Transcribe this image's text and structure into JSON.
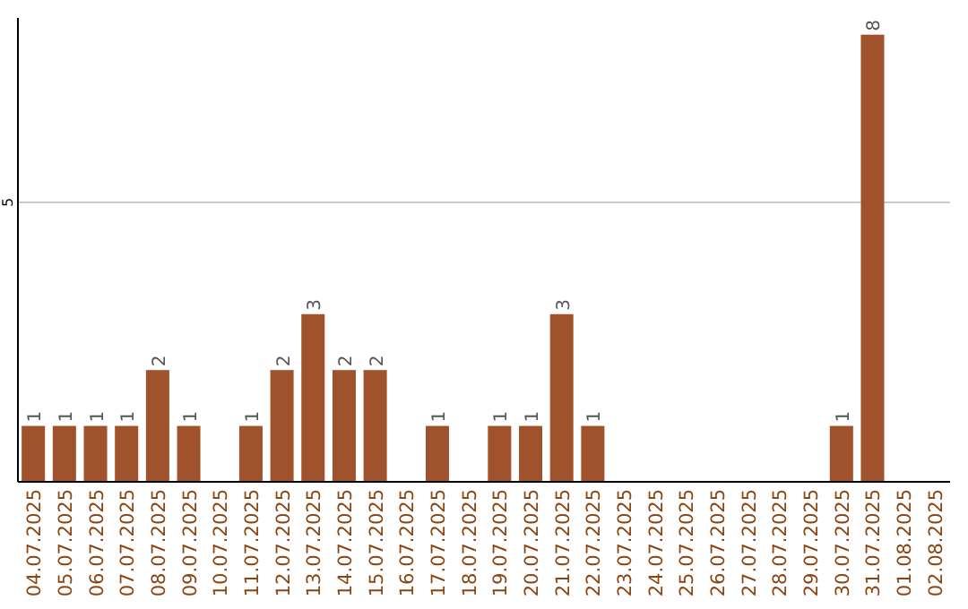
{
  "chart_data": {
    "type": "bar",
    "categories": [
      "04.07.2025",
      "05.07.2025",
      "06.07.2025",
      "07.07.2025",
      "08.07.2025",
      "09.07.2025",
      "10.07.2025",
      "11.07.2025",
      "12.07.2025",
      "13.07.2025",
      "14.07.2025",
      "15.07.2025",
      "16.07.2025",
      "17.07.2025",
      "18.07.2025",
      "19.07.2025",
      "20.07.2025",
      "21.07.2025",
      "22.07.2025",
      "23.07.2025",
      "24.07.2025",
      "25.07.2025",
      "26.07.2025",
      "27.07.2025",
      "28.07.2025",
      "29.07.2025",
      "30.07.2025",
      "31.07.2025",
      "01.08.2025",
      "02.08.2025"
    ],
    "values": [
      1,
      1,
      1,
      1,
      2,
      1,
      0,
      1,
      2,
      3,
      2,
      2,
      0,
      1,
      0,
      1,
      1,
      3,
      1,
      0,
      0,
      0,
      0,
      0,
      0,
      0,
      1,
      8,
      0,
      0
    ],
    "value_labels": [
      "1",
      "1",
      "1",
      "1",
      "2",
      "1",
      null,
      "1",
      "2",
      "3",
      "2",
      "2",
      null,
      "1",
      null,
      "1",
      "1",
      "3",
      "1",
      null,
      null,
      null,
      null,
      null,
      null,
      null,
      "1",
      "8",
      null,
      null
    ],
    "color": "#a0522d",
    "ylim": [
      0,
      8.3
    ],
    "yticks": [
      5
    ],
    "grid": "y"
  }
}
